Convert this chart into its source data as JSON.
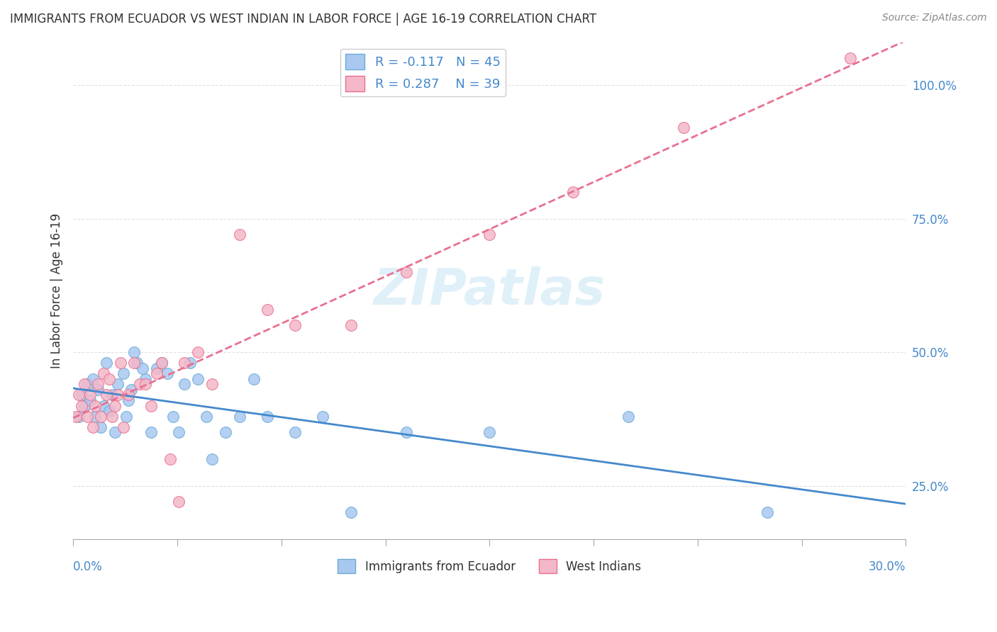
{
  "title": "IMMIGRANTS FROM ECUADOR VS WEST INDIAN IN LABOR FORCE | AGE 16-19 CORRELATION CHART",
  "source": "Source: ZipAtlas.com",
  "ylabel_label": "In Labor Force | Age 16-19",
  "legend1_label": "R = -0.117   N = 45",
  "legend2_label": "R = 0.287    N = 39",
  "legend_bottom_1": "Immigrants from Ecuador",
  "legend_bottom_2": "West Indians",
  "watermark": "ZIPatlas",
  "ecuador_color": "#a8c8f0",
  "ecuador_edge": "#6aaad4",
  "westindian_color": "#f4b8c8",
  "westindian_edge": "#e87090",
  "ecuador_line_color": "#4488cc",
  "westindian_line_color": "#e87090",
  "ecuador_scatter_x": [
    0.002,
    0.003,
    0.004,
    0.005,
    0.006,
    0.007,
    0.008,
    0.009,
    0.01,
    0.011,
    0.012,
    0.013,
    0.014,
    0.015,
    0.016,
    0.018,
    0.019,
    0.02,
    0.021,
    0.022,
    0.023,
    0.025,
    0.026,
    0.028,
    0.03,
    0.032,
    0.034,
    0.036,
    0.038,
    0.04,
    0.042,
    0.045,
    0.048,
    0.05,
    0.055,
    0.06,
    0.065,
    0.07,
    0.08,
    0.09,
    0.1,
    0.12,
    0.15,
    0.2,
    0.25
  ],
  "ecuador_scatter_y": [
    0.38,
    0.42,
    0.4,
    0.44,
    0.41,
    0.45,
    0.38,
    0.43,
    0.36,
    0.4,
    0.48,
    0.39,
    0.42,
    0.35,
    0.44,
    0.46,
    0.38,
    0.41,
    0.43,
    0.5,
    0.48,
    0.47,
    0.45,
    0.35,
    0.47,
    0.48,
    0.46,
    0.38,
    0.35,
    0.44,
    0.48,
    0.45,
    0.38,
    0.3,
    0.35,
    0.38,
    0.45,
    0.38,
    0.35,
    0.38,
    0.2,
    0.35,
    0.35,
    0.38,
    0.2
  ],
  "westindian_scatter_x": [
    0.001,
    0.002,
    0.003,
    0.004,
    0.005,
    0.006,
    0.007,
    0.008,
    0.009,
    0.01,
    0.011,
    0.012,
    0.013,
    0.014,
    0.015,
    0.016,
    0.017,
    0.018,
    0.02,
    0.022,
    0.024,
    0.026,
    0.028,
    0.03,
    0.032,
    0.035,
    0.038,
    0.04,
    0.045,
    0.05,
    0.06,
    0.07,
    0.08,
    0.1,
    0.12,
    0.15,
    0.18,
    0.22,
    0.28
  ],
  "westindian_scatter_y": [
    0.38,
    0.42,
    0.4,
    0.44,
    0.38,
    0.42,
    0.36,
    0.4,
    0.44,
    0.38,
    0.46,
    0.42,
    0.45,
    0.38,
    0.4,
    0.42,
    0.48,
    0.36,
    0.42,
    0.48,
    0.44,
    0.44,
    0.4,
    0.46,
    0.48,
    0.3,
    0.22,
    0.48,
    0.5,
    0.44,
    0.72,
    0.58,
    0.55,
    0.55,
    0.65,
    0.72,
    0.8,
    0.92,
    1.05
  ],
  "xmin": 0.0,
  "xmax": 0.3,
  "ymin": 0.15,
  "ymax": 1.08,
  "background_color": "#ffffff",
  "grid_color": "#dddddd",
  "ytick_vals": [
    0.25,
    0.5,
    0.75,
    1.0
  ],
  "ytick_labels": [
    "25.0%",
    "50.0%",
    "75.0%",
    "100.0%"
  ]
}
